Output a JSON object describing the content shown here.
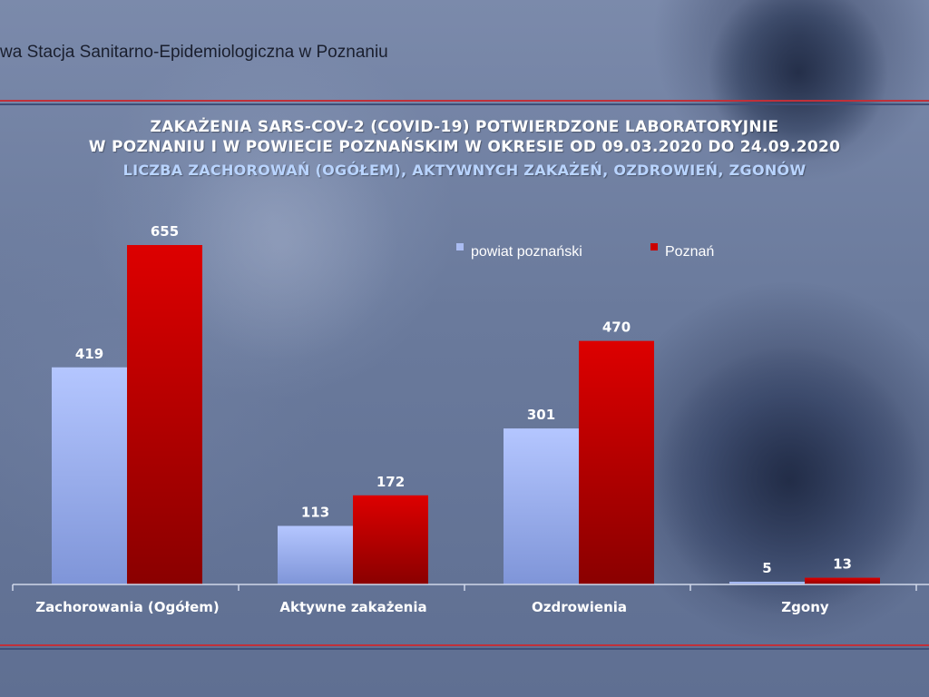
{
  "header": {
    "institution": "wa Stacja Sanitarno-Epidemiologiczna w Poznaniu"
  },
  "chart_data": {
    "type": "bar",
    "title_line1": "ZAKAŻENIA SARS-COV-2 (COVID-19) POTWIERDZONE LABORATORYJNIE",
    "title_line2": "W POZNANIU I W POWIECIE POZNAŃSKIM W OKRESIE OD 09.03.2020 DO 24.09.2020",
    "subtitle": "LICZBA ZACHOROWAŃ (OGÓŁEM), AKTYWNYCH ZAKAŻEŃ, OZDROWIEŃ, ZGONÓW",
    "categories": [
      "Zachorowania (Ogółem)",
      "Aktywne zakażenia",
      "Ozdrowienia",
      "Zgony"
    ],
    "series": [
      {
        "name": "powiat poznański",
        "values": [
          419,
          113,
          301,
          5
        ],
        "color": "#aabcf2"
      },
      {
        "name": "Poznań",
        "values": [
          655,
          172,
          470,
          13
        ],
        "color": "#cc0000"
      }
    ],
    "ylim": [
      0,
      680
    ],
    "grid": false,
    "legend_position": "top-right"
  }
}
